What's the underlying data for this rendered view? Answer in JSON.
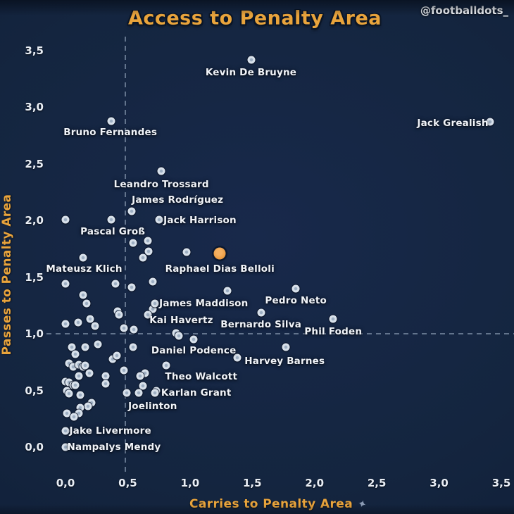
{
  "header": {
    "title": "Access to Penalty Area",
    "handle": "@footballdots_"
  },
  "colors": {
    "background": "#14253F",
    "title_gold": "#E9A43C",
    "label_white": "#F1F4F9",
    "dot_fill": "#D8E1EB",
    "highlight_orange": "#EC9B3F",
    "dashed_line": "#76879F"
  },
  "chart_data": {
    "type": "scatter",
    "title": "Access to Penalty Area",
    "xlabel": "Carries to Penalty Area",
    "ylabel": "Passes to Penalty Area",
    "xlim": [
      -0.3,
      3.6
    ],
    "ylim": [
      -0.35,
      3.65
    ],
    "grid": false,
    "decimal_separator": ",",
    "x_tick_values": [
      0,
      0.5,
      1.0,
      1.5,
      2.0,
      2.5,
      3.0,
      3.5
    ],
    "x_tick_labels": [
      "0,0",
      "0,5",
      "1,0",
      "1,5",
      "2,0",
      "2,5",
      "3,0",
      "3,5"
    ],
    "y_tick_values": [
      0,
      0.5,
      1.0,
      1.5,
      2.0,
      2.5,
      3.0,
      3.5
    ],
    "y_tick_labels": [
      "0,0",
      "0,5",
      "1,0",
      "1,5",
      "2,0",
      "2,5",
      "3,0",
      "3,5"
    ],
    "reference_lines": {
      "vertical_x": 0.48,
      "horizontal_y": 1.0,
      "style": "dashed"
    },
    "labeled_players": [
      {
        "name": "Kevin De Bruyne",
        "x": 1.49,
        "y": 3.42,
        "lx": 1.49,
        "ly": 3.31
      },
      {
        "name": "Jack Grealish",
        "x": 3.41,
        "y": 2.87,
        "lx": 3.11,
        "ly": 2.86
      },
      {
        "name": "Bruno Fernandes",
        "x": 0.37,
        "y": 2.88,
        "lx": 0.36,
        "ly": 2.78
      },
      {
        "name": "Leandro Trossard",
        "x": 0.77,
        "y": 2.44,
        "lx": 0.77,
        "ly": 2.32
      },
      {
        "name": "James Rodríguez",
        "x": 0.53,
        "y": 2.08,
        "lx": 0.9,
        "ly": 2.18
      },
      {
        "name": "Jack Harrison",
        "x": 0.75,
        "y": 2.01,
        "lx": 1.08,
        "ly": 2.0
      },
      {
        "name": "Pascal Groß",
        "x": 0.37,
        "y": 2.01,
        "lx": 0.38,
        "ly": 1.9
      },
      {
        "name": "Mateusz Klich",
        "x": 0.14,
        "y": 1.67,
        "lx": 0.15,
        "ly": 1.57
      },
      {
        "name": "Raphael Dias Belloli",
        "x": 1.24,
        "y": 1.71,
        "lx": 1.24,
        "ly": 1.57,
        "highlight": true
      },
      {
        "name": "James Maddison",
        "x": 0.72,
        "y": 1.27,
        "lx": 1.11,
        "ly": 1.27
      },
      {
        "name": "Kai Havertz",
        "x": 0.66,
        "y": 1.17,
        "lx": 0.93,
        "ly": 1.12
      },
      {
        "name": "Pedro Neto",
        "x": 1.85,
        "y": 1.4,
        "lx": 1.85,
        "ly": 1.29
      },
      {
        "name": "Bernardo Silva",
        "x": 1.57,
        "y": 1.19,
        "lx": 1.57,
        "ly": 1.08
      },
      {
        "name": "Phil Foden",
        "x": 2.15,
        "y": 1.13,
        "lx": 2.15,
        "ly": 1.02
      },
      {
        "name": "Daniel Podence",
        "x": 1.03,
        "y": 0.95,
        "lx": 1.03,
        "ly": 0.85
      },
      {
        "name": "Harvey Barnes",
        "x": 1.77,
        "y": 0.88,
        "lx": 1.76,
        "ly": 0.76
      },
      {
        "name": "Theo Walcott",
        "x": 0.81,
        "y": 0.72,
        "lx": 1.09,
        "ly": 0.62
      },
      {
        "name": "Karlan Grant",
        "x": 0.72,
        "y": 0.48,
        "lx": 1.05,
        "ly": 0.48
      },
      {
        "name": "Joelinton",
        "x": 0.59,
        "y": 0.48,
        "lx": 0.7,
        "ly": 0.36
      },
      {
        "name": "Jake Livermore",
        "x": 0.0,
        "y": 0.14,
        "lx": 0.36,
        "ly": 0.14
      },
      {
        "name": "Nampalys Mendy",
        "x": 0.0,
        "y": 0.0,
        "lx": 0.39,
        "ly": 0.0
      }
    ],
    "background_points": [
      [
        0.0,
        2.01
      ],
      [
        0.54,
        1.8
      ],
      [
        0.66,
        1.82
      ],
      [
        0.67,
        1.73
      ],
      [
        0.62,
        1.67
      ],
      [
        0.97,
        1.72
      ],
      [
        0.0,
        1.44
      ],
      [
        0.4,
        1.44
      ],
      [
        0.53,
        1.41
      ],
      [
        0.7,
        1.46
      ],
      [
        1.3,
        1.38
      ],
      [
        0.14,
        1.34
      ],
      [
        0.17,
        1.27
      ],
      [
        0.42,
        1.2
      ],
      [
        0.43,
        1.17
      ],
      [
        0.7,
        1.22
      ],
      [
        0.0,
        1.09
      ],
      [
        0.1,
        1.1
      ],
      [
        0.2,
        1.13
      ],
      [
        0.24,
        1.07
      ],
      [
        0.47,
        1.05
      ],
      [
        0.55,
        1.04
      ],
      [
        0.89,
        1.01
      ],
      [
        0.91,
        0.98
      ],
      [
        0.05,
        0.88
      ],
      [
        0.16,
        0.88
      ],
      [
        0.26,
        0.91
      ],
      [
        0.08,
        0.82
      ],
      [
        0.38,
        0.78
      ],
      [
        0.41,
        0.81
      ],
      [
        0.54,
        0.88
      ],
      [
        0.03,
        0.74
      ],
      [
        0.06,
        0.71
      ],
      [
        0.11,
        0.73
      ],
      [
        0.14,
        0.71
      ],
      [
        0.16,
        0.72
      ],
      [
        0.19,
        0.65
      ],
      [
        0.11,
        0.63
      ],
      [
        0.32,
        0.63
      ],
      [
        0.32,
        0.56
      ],
      [
        0.0,
        0.58
      ],
      [
        0.03,
        0.57
      ],
      [
        0.06,
        0.55
      ],
      [
        0.08,
        0.55
      ],
      [
        0.01,
        0.5
      ],
      [
        0.03,
        0.47
      ],
      [
        0.12,
        0.46
      ],
      [
        0.47,
        0.68
      ],
      [
        0.49,
        0.48
      ],
      [
        0.62,
        0.54
      ],
      [
        0.64,
        0.65
      ],
      [
        0.6,
        0.63
      ],
      [
        1.38,
        0.79
      ],
      [
        0.73,
        0.5
      ],
      [
        0.21,
        0.39
      ],
      [
        0.18,
        0.36
      ],
      [
        0.12,
        0.35
      ],
      [
        0.11,
        0.3
      ],
      [
        0.01,
        0.3
      ],
      [
        0.07,
        0.27
      ]
    ]
  }
}
